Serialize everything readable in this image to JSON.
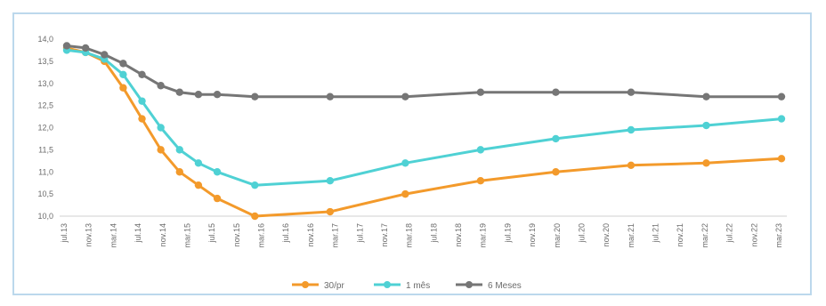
{
  "chart_data": {
    "type": "line",
    "title": "",
    "xlabel": "",
    "ylabel": "",
    "ylim": [
      10.0,
      14.0
    ],
    "yticks": [
      "14,0",
      "13,5",
      "13,0",
      "12,5",
      "12,0",
      "11,5",
      "11,0",
      "10,5",
      "10,0"
    ],
    "x_tick_labels": [
      "jul.13",
      "nov.13",
      "mar.14",
      "jul.14",
      "nov.14",
      "mar.15",
      "jul.15",
      "nov.15",
      "mar.16",
      "jul.16",
      "nov.16",
      "mar.17",
      "jul.17",
      "nov.17",
      "mar.18",
      "jul.18",
      "nov.18",
      "mar.19",
      "jul.19",
      "nov.19",
      "mar.20",
      "jul.20",
      "nov.20",
      "mar.21",
      "jul.21",
      "nov.21",
      "mar.22",
      "jul.22",
      "nov.22",
      "mar.23"
    ],
    "grid": false,
    "legend_position": "bottom",
    "series": [
      {
        "name": "30/pr",
        "color": "#f39a2b",
        "points": [
          [
            0,
            13.8
          ],
          [
            1,
            13.7
          ],
          [
            2,
            13.5
          ],
          [
            3,
            12.9
          ],
          [
            4,
            12.2
          ],
          [
            5,
            11.5
          ],
          [
            6,
            11.0
          ],
          [
            7,
            10.7
          ],
          [
            8,
            10.4
          ],
          [
            10,
            10.0
          ],
          [
            14,
            10.1
          ],
          [
            18,
            10.5
          ],
          [
            22,
            10.8
          ],
          [
            26,
            11.0
          ],
          [
            30,
            11.15
          ],
          [
            34,
            11.2
          ],
          [
            38,
            11.3
          ]
        ]
      },
      {
        "name": "1 mês",
        "color": "#4fd1d4",
        "points": [
          [
            0,
            13.75
          ],
          [
            1,
            13.7
          ],
          [
            2,
            13.55
          ],
          [
            3,
            13.2
          ],
          [
            4,
            12.6
          ],
          [
            5,
            12.0
          ],
          [
            6,
            11.5
          ],
          [
            7,
            11.2
          ],
          [
            8,
            11.0
          ],
          [
            10,
            10.7
          ],
          [
            14,
            10.8
          ],
          [
            18,
            11.2
          ],
          [
            22,
            11.5
          ],
          [
            26,
            11.75
          ],
          [
            30,
            11.95
          ],
          [
            34,
            12.05
          ],
          [
            38,
            12.2
          ]
        ]
      },
      {
        "name": "6 Meses",
        "color": "#767676",
        "points": [
          [
            0,
            13.85
          ],
          [
            1,
            13.8
          ],
          [
            2,
            13.65
          ],
          [
            3,
            13.45
          ],
          [
            4,
            13.2
          ],
          [
            5,
            12.95
          ],
          [
            6,
            12.8
          ],
          [
            7,
            12.75
          ],
          [
            8,
            12.75
          ],
          [
            10,
            12.7
          ],
          [
            14,
            12.7
          ],
          [
            18,
            12.7
          ],
          [
            22,
            12.8
          ],
          [
            26,
            12.8
          ],
          [
            30,
            12.8
          ],
          [
            34,
            12.7
          ],
          [
            38,
            12.7
          ]
        ]
      }
    ]
  }
}
